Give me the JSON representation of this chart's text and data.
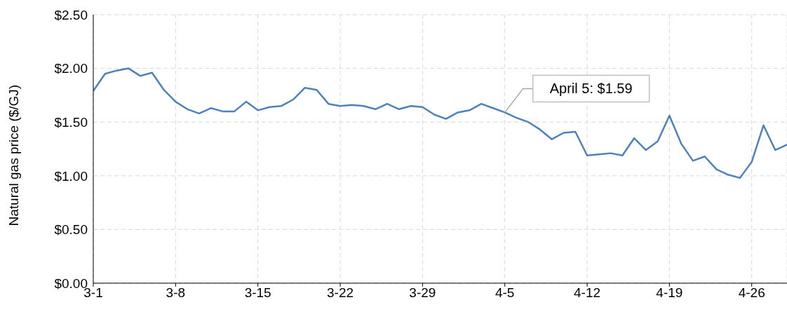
{
  "chart_data": {
    "type": "line",
    "ylabel": "Natural gas price ($/GJ)",
    "categories": [
      "3-1",
      null,
      null,
      null,
      null,
      null,
      null,
      "3-8",
      null,
      null,
      null,
      null,
      null,
      null,
      "3-15",
      null,
      null,
      null,
      null,
      null,
      null,
      "3-22",
      null,
      null,
      null,
      null,
      null,
      null,
      "3-29",
      null,
      null,
      null,
      null,
      null,
      null,
      "4-5",
      null,
      null,
      null,
      null,
      null,
      null,
      "4-12",
      null,
      null,
      null,
      null,
      null,
      null,
      "4-19",
      null,
      null,
      null,
      null,
      null,
      null,
      "4-26",
      null,
      null,
      null
    ],
    "series": [
      {
        "color": "#4f81bd",
        "values": [
          1.79,
          1.95,
          1.98,
          2.0,
          1.93,
          1.96,
          1.8,
          1.69,
          1.62,
          1.58,
          1.63,
          1.6,
          1.6,
          1.69,
          1.61,
          1.64,
          1.65,
          1.71,
          1.82,
          1.8,
          1.67,
          1.65,
          1.66,
          1.65,
          1.62,
          1.67,
          1.62,
          1.65,
          1.64,
          1.57,
          1.53,
          1.59,
          1.61,
          1.67,
          1.63,
          1.59,
          1.54,
          1.5,
          1.43,
          1.34,
          1.4,
          1.41,
          1.19,
          1.2,
          1.21,
          1.19,
          1.35,
          1.24,
          1.32,
          1.56,
          1.3,
          1.14,
          1.18,
          1.06,
          1.01,
          0.98,
          1.13,
          1.47,
          1.24,
          1.29
        ]
      }
    ],
    "ylim": [
      0,
      2.5
    ],
    "yticks": [
      {
        "value": 0,
        "label": "$0.00"
      },
      {
        "value": 0.5,
        "label": "$0.50"
      },
      {
        "value": 1,
        "label": "$1.00"
      },
      {
        "value": 1.5,
        "label": "$1.50"
      },
      {
        "value": 2,
        "label": "$2.00"
      },
      {
        "value": 2.5,
        "label": "$2.50"
      }
    ],
    "grid": true,
    "legend": false,
    "marker": "none",
    "line_style": "solid",
    "annotations": [
      {
        "text": "April 5: $1.59",
        "x": "4-5",
        "y": 1.59
      }
    ]
  }
}
